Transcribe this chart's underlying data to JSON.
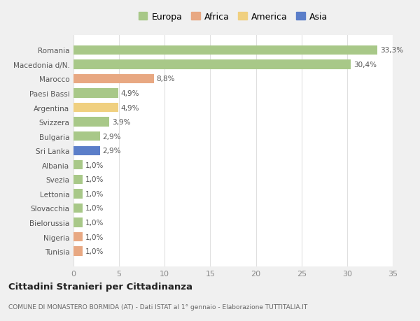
{
  "categories": [
    "Tunisia",
    "Nigeria",
    "Bielorussia",
    "Slovacchia",
    "Lettonia",
    "Svezia",
    "Albania",
    "Sri Lanka",
    "Bulgaria",
    "Svizzera",
    "Argentina",
    "Paesi Bassi",
    "Marocco",
    "Macedonia d/N.",
    "Romania"
  ],
  "values": [
    1.0,
    1.0,
    1.0,
    1.0,
    1.0,
    1.0,
    1.0,
    2.9,
    2.9,
    3.9,
    4.9,
    4.9,
    8.8,
    30.4,
    33.3
  ],
  "colors": [
    "#e8a882",
    "#e8a882",
    "#a8c888",
    "#a8c888",
    "#a8c888",
    "#a8c888",
    "#a8c888",
    "#5b7ec9",
    "#a8c888",
    "#a8c888",
    "#f0d080",
    "#a8c888",
    "#e8a882",
    "#a8c888",
    "#a8c888"
  ],
  "labels": [
    "1,0%",
    "1,0%",
    "1,0%",
    "1,0%",
    "1,0%",
    "1,0%",
    "1,0%",
    "2,9%",
    "2,9%",
    "3,9%",
    "4,9%",
    "4,9%",
    "8,8%",
    "30,4%",
    "33,3%"
  ],
  "legend": [
    {
      "label": "Europa",
      "color": "#a8c888"
    },
    {
      "label": "Africa",
      "color": "#e8a882"
    },
    {
      "label": "America",
      "color": "#f0d080"
    },
    {
      "label": "Asia",
      "color": "#5b7ec9"
    }
  ],
  "title": "Cittadini Stranieri per Cittadinanza",
  "subtitle": "COMUNE DI MONASTERO BORMIDA (AT) - Dati ISTAT al 1° gennaio - Elaborazione TUTTITALIA.IT",
  "xlim": [
    0,
    35
  ],
  "xticks": [
    0,
    5,
    10,
    15,
    20,
    25,
    30,
    35
  ],
  "bg_color": "#f0f0f0",
  "plot_bg_color": "#ffffff",
  "grid_color": "#e0e0e0",
  "bar_height": 0.65,
  "label_fontsize": 7.5,
  "ytick_fontsize": 7.5,
  "xtick_fontsize": 8
}
